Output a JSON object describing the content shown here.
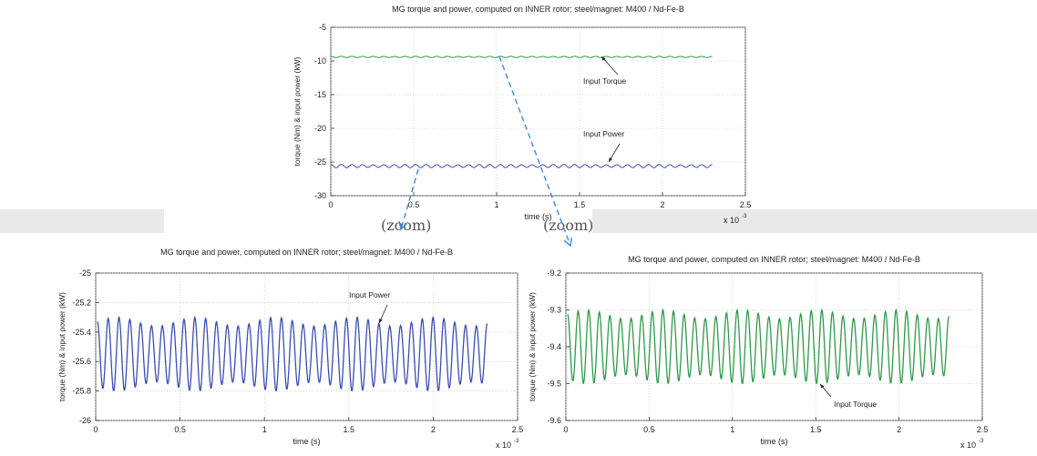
{
  "zoom_labels": [
    "(zoom)",
    "(zoom)"
  ],
  "colors": {
    "power": "#3b4db5",
    "torque": "#2e9a4a",
    "arrow": "#4a90d9",
    "band": "#e9e9e9"
  },
  "chart_data": [
    {
      "type": "line",
      "title": "MG torque and power, computed on INNER rotor; steel/magnet: M400 / Nd-Fe-B",
      "xlabel": "time (s)",
      "ylabel": "torque (Nm) & input power (kW)",
      "x_multiplier": "x 10",
      "x_exponent": "-3",
      "xlim": [
        0,
        2.5
      ],
      "ylim": [
        -30,
        -5
      ],
      "xticks": [
        "0",
        "0.5",
        "1",
        "1.5",
        "2",
        "2.5"
      ],
      "yticks": [
        "-5",
        "-10",
        "-15",
        "-20",
        "-25",
        "-30"
      ],
      "grid": true,
      "series": [
        {
          "name": "Input Torque",
          "color": "#2e9a4a",
          "x_range": [
            0,
            2.3
          ],
          "mean": -9.4,
          "amplitude": 0.1,
          "cycles": 36
        },
        {
          "name": "Input Power",
          "color": "#3b4db5",
          "x_range": [
            0,
            2.3
          ],
          "mean": -25.6,
          "amplitude": 0.25,
          "cycles": 36
        }
      ]
    },
    {
      "type": "line",
      "title": "MG torque and power, computed on INNER rotor; steel/magnet: M400 / Nd-Fe-B",
      "xlabel": "time (s)",
      "ylabel": "torque (Nm) & input power (kW)",
      "x_multiplier": "x 10",
      "x_exponent": "-3",
      "xlim": [
        0,
        2.5
      ],
      "ylim": [
        -26,
        -25
      ],
      "xticks": [
        "0",
        "0.5",
        "1",
        "1.5",
        "2",
        "2.5"
      ],
      "yticks": [
        "-25",
        "-25.2",
        "-25.4",
        "-25.6",
        "-25.8",
        "-26"
      ],
      "grid": true,
      "series": [
        {
          "name": "Input Power",
          "color": "#3b4db5",
          "x_range": [
            0.01,
            2.32
          ],
          "mean": -25.55,
          "amplitude": 0.25,
          "cycles": 36
        }
      ]
    },
    {
      "type": "line",
      "title": "MG torque and power, computed on INNER rotor; steel/magnet: M400 / Nd-Fe-B",
      "xlabel": "time (s)",
      "ylabel": "torque (Nm) & input power (kW)",
      "x_multiplier": "x 10",
      "x_exponent": "-3",
      "xlim": [
        0,
        2.5
      ],
      "ylim": [
        -9.6,
        -9.2
      ],
      "xticks": [
        "0",
        "0.5",
        "1",
        "1.5",
        "2",
        "2.5"
      ],
      "yticks": [
        "-9.2",
        "-9.3",
        "-9.4",
        "-9.5",
        "-9.6"
      ],
      "grid": true,
      "series": [
        {
          "name": "Input Torque",
          "color": "#2e9a4a",
          "x_range": [
            0.01,
            2.3
          ],
          "mean": -9.4,
          "amplitude": 0.1,
          "cycles": 36
        }
      ]
    }
  ]
}
